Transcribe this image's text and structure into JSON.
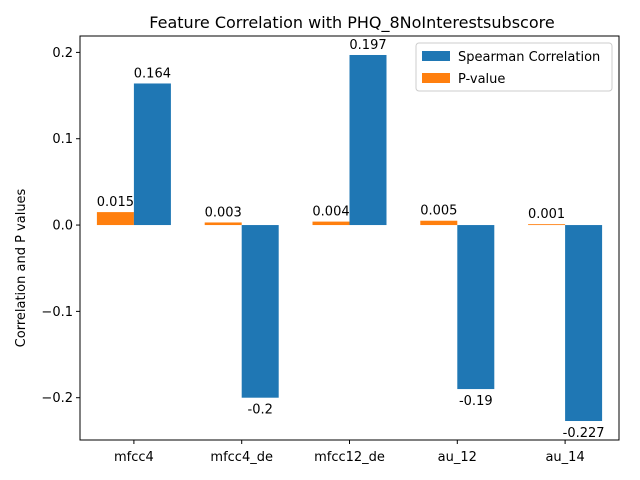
{
  "chart_data": {
    "type": "bar",
    "title": "Feature Correlation with PHQ_8NoInterestsubscore",
    "xlabel": "",
    "ylabel": "Correlation and P values",
    "categories": [
      "mfcc4",
      "mfcc4_de",
      "mfcc12_de",
      "au_12",
      "au_14"
    ],
    "series": [
      {
        "name": "P-value",
        "color": "#ff7f0e",
        "values": [
          0.015,
          0.003,
          0.004,
          0.005,
          0.001
        ],
        "labels": [
          "0.015",
          "0.003",
          "0.004",
          "0.005",
          "0.001"
        ]
      },
      {
        "name": "Spearman Correlation",
        "color": "#1f77b4",
        "values": [
          0.164,
          -0.2,
          0.197,
          -0.19,
          -0.227
        ],
        "labels": [
          "0.164",
          "-0.2",
          "0.197",
          "-0.19",
          "-0.227"
        ]
      }
    ],
    "legend_order": [
      "Spearman Correlation",
      "P-value"
    ],
    "legend_position": "top-right",
    "ylim": [
      -0.249,
      0.219
    ],
    "yticks": [
      -0.2,
      -0.1,
      0.0,
      0.1,
      0.2
    ],
    "ytick_labels": [
      "−0.2",
      "−0.1",
      "0.0",
      "0.1",
      "0.2"
    ],
    "grid": false
  }
}
